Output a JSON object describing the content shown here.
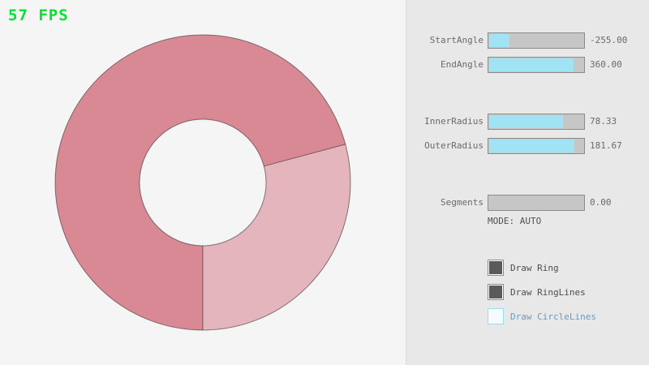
{
  "fps_label": "57 FPS",
  "colors": {
    "background": "#F5F5F5",
    "panel_background": "#E8E8E8",
    "ring_dark": "#D98994",
    "ring_light": "#E4B5BC",
    "ring_outline": "rgba(0,0,0,0.45)",
    "slider_fill": "#9FE3F5",
    "fps_green": "#00E430",
    "unchecked_blue": "#6C9BBC"
  },
  "panel": {
    "sliders": [
      {
        "label": "StartAngle",
        "value": "-255.00",
        "fill_percent": 21.7
      },
      {
        "label": "EndAngle",
        "value": "360.00",
        "fill_percent": 90.0
      },
      {
        "label": "InnerRadius",
        "value": "78.33",
        "fill_percent": 78.3
      },
      {
        "label": "OuterRadius",
        "value": "181.67",
        "fill_percent": 90.8
      },
      {
        "label": "Segments",
        "value": "0.00",
        "fill_percent": 0
      }
    ],
    "mode_text": "MODE: AUTO",
    "checkboxes": [
      {
        "label": "Draw Ring",
        "checked": true
      },
      {
        "label": "Draw RingLines",
        "checked": true
      },
      {
        "label": "Draw CircleLines",
        "checked": false
      }
    ]
  }
}
